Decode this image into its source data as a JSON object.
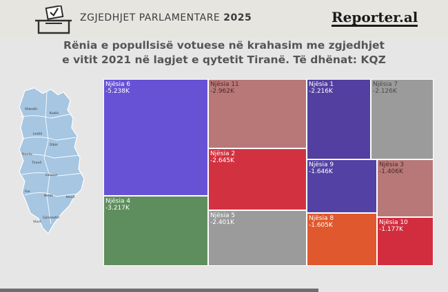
{
  "header": {
    "title_prefix": "ZGJEDHJET PARLAMENTARE",
    "title_year": "2025",
    "brand": "Reporter.al",
    "icon": "ballot-box-icon"
  },
  "subtitle": {
    "line1": "Rënia e popullsisë votuese në krahasim me zgjedhjet",
    "line2": "e vitit 2021 në lagjet e qytetit Tiranë. Të dhënat: KQZ"
  },
  "map": {
    "icon": "albania-map-icon",
    "fill": "#a6c6e2",
    "labels": [
      "Shkodër",
      "Kukës",
      "Lezhë",
      "Dibër",
      "Durrës",
      "Tiranë",
      "Elbasan",
      "Fier",
      "Berat",
      "Korçë",
      "Gjirokastër",
      "Vlorë"
    ]
  },
  "chart_data": {
    "type": "treemap",
    "title": "Rënia e popullsisë votuese në krahasim me zgjedhjet e vitit 2021 në lagjet e qytetit Tiranë. Të dhënat: KQZ",
    "unit": "K",
    "items": [
      {
        "name": "Njësia 6",
        "label": "-5.238K",
        "value": -5.238,
        "color": "#6752d6",
        "text_color": "#ffffff"
      },
      {
        "name": "Njësia 4",
        "label": "-3.217K",
        "value": -3.217,
        "color": "#5f8e5e",
        "text_color": "#ffffff"
      },
      {
        "name": "Njësia 11",
        "label": "-2.962K",
        "value": -2.962,
        "color": "#b87878",
        "text_color": "#4a2a2a"
      },
      {
        "name": "Njësia 2",
        "label": "-2.645K",
        "value": -2.645,
        "color": "#d23240",
        "text_color": "#ffffff"
      },
      {
        "name": "Njësia 5",
        "label": "-2.401K",
        "value": -2.401,
        "color": "#9b9b9b",
        "text_color": "#ffffff"
      },
      {
        "name": "Njësia 1",
        "label": "-2.216K",
        "value": -2.216,
        "color": "#533f9f",
        "text_color": "#ffffff"
      },
      {
        "name": "Njësia 7",
        "label": "-2.126K",
        "value": -2.126,
        "color": "#9b9b9b",
        "text_color": "#4a4a4a"
      },
      {
        "name": "Njësia 9",
        "label": "-1.646K",
        "value": -1.646,
        "color": "#5342a3",
        "text_color": "#ffffff"
      },
      {
        "name": "Njësia 3",
        "label": "-1.406K",
        "value": -1.406,
        "color": "#b87878",
        "text_color": "#4a2a2a"
      },
      {
        "name": "Njësia 8",
        "label": "-1.605K",
        "value": -1.605,
        "color": "#e0582d",
        "text_color": "#ffffff"
      },
      {
        "name": "Njësia 10",
        "label": "-1.177K",
        "value": -1.177,
        "color": "#d22d3e",
        "text_color": "#ffffff"
      }
    ]
  }
}
